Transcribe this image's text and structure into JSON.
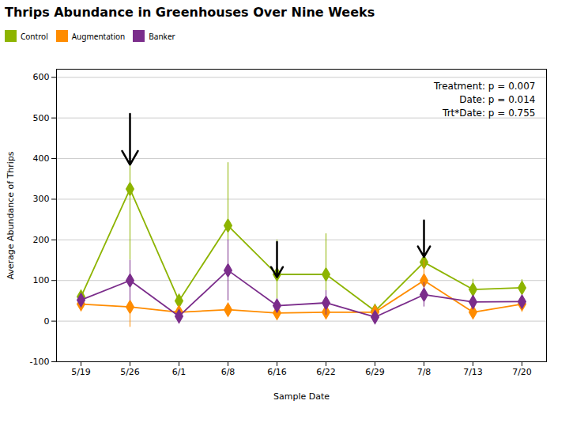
{
  "chart_data": {
    "type": "line",
    "title": "Thrips Abundance in Greenhouses Over Nine Weeks",
    "xlabel": "Sample Date",
    "ylabel": "Average Abundance of Thrips",
    "categories": [
      "5/19",
      "5/26",
      "6/1",
      "6/8",
      "6/16",
      "6/22",
      "6/29",
      "7/8",
      "7/13",
      "7/20"
    ],
    "series": [
      {
        "name": "Control",
        "color": "#8DB400",
        "marker": "diamond",
        "values": [
          60,
          325,
          50,
          235,
          115,
          115,
          25,
          145,
          78,
          82
        ],
        "errors": [
          15,
          175,
          15,
          155,
          85,
          100,
          10,
          80,
          25,
          20
        ]
      },
      {
        "name": "Augmentation",
        "color": "#FF8C00",
        "marker": "diamond",
        "values": [
          42,
          35,
          22,
          28,
          20,
          22,
          22,
          100,
          22,
          42
        ],
        "errors": [
          10,
          50,
          10,
          15,
          10,
          15,
          10,
          50,
          10,
          20
        ]
      },
      {
        "name": "Banker",
        "color": "#7B2D8B",
        "marker": "diamond",
        "values": [
          52,
          100,
          12,
          125,
          38,
          45,
          10,
          65,
          47,
          48
        ],
        "errors": [
          15,
          50,
          8,
          75,
          15,
          30,
          8,
          30,
          15,
          15
        ]
      }
    ],
    "ylim": [
      -100,
      620
    ],
    "yticks": [
      -100,
      0,
      100,
      200,
      300,
      400,
      500,
      600
    ],
    "grid": true,
    "legend": "top",
    "annotation": "Treatment: p = 0.007\nDate: p = 0.014\nTrt*Date: p = 0.755",
    "arrows": [
      {
        "x": "5/26",
        "from": 510,
        "to": 385
      },
      {
        "x": "6/16",
        "from": 195,
        "to": 108
      },
      {
        "x": "7/8",
        "from": 248,
        "to": 158
      }
    ]
  }
}
